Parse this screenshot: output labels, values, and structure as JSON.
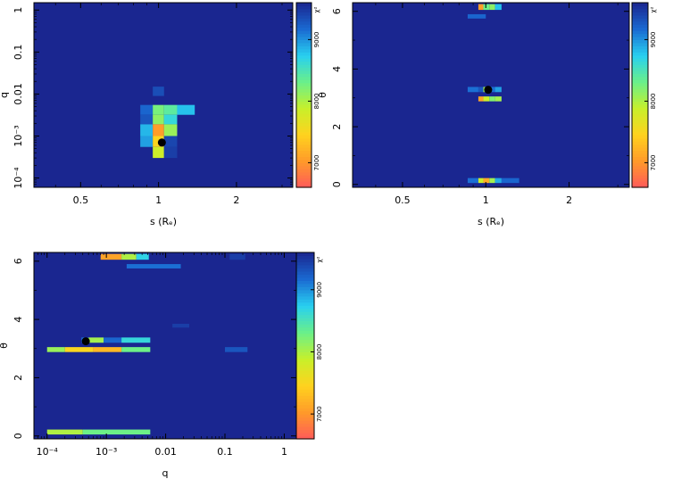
{
  "colors": {
    "background_cell": "#1a2690",
    "scale": [
      "#ff5a5a",
      "#ff9a2a",
      "#ffd21e",
      "#c8f02a",
      "#6af08a",
      "#28d0f0",
      "#1a6ad2",
      "#1a2690"
    ]
  },
  "chart_data": [
    {
      "type": "heatmap",
      "id": "q_vs_s",
      "xlabel": "s (Rₑ)",
      "ylabel": "q",
      "xscale": "log",
      "yscale": "log",
      "xlim": [
        0.33,
        3.3
      ],
      "ylim": [
        6e-05,
        1.5
      ],
      "xticks": [
        {
          "value": 0.5,
          "label": "0.5"
        },
        {
          "value": 1,
          "label": "1"
        },
        {
          "value": 2,
          "label": "2"
        }
      ],
      "yticks": [
        {
          "value": 0.0001,
          "label": "10⁻⁴"
        },
        {
          "value": 0.001,
          "label": "10⁻³"
        },
        {
          "value": 0.01,
          "label": "0.01"
        },
        {
          "value": 0.1,
          "label": "0.1"
        },
        {
          "value": 1,
          "label": "1"
        }
      ],
      "colorbar": {
        "label": "χ²",
        "ticks": [
          {
            "value": 7000,
            "label": "7000"
          },
          {
            "value": 8000,
            "label": "8000"
          },
          {
            "value": 9000,
            "label": "9000"
          }
        ],
        "range": [
          6600,
          9600
        ]
      },
      "cells": [
        {
          "x": [
            0.95,
            1.05
          ],
          "y": [
            0.009,
            0.015
          ],
          "chi2": 9350
        },
        {
          "x": [
            0.85,
            0.95
          ],
          "y": [
            0.0032,
            0.0055
          ],
          "chi2": 9200
        },
        {
          "x": [
            0.95,
            1.05
          ],
          "y": [
            0.0032,
            0.0055
          ],
          "chi2": 8250
        },
        {
          "x": [
            1.05,
            1.18
          ],
          "y": [
            0.0032,
            0.0055
          ],
          "chi2": 8400
        },
        {
          "x": [
            1.18,
            1.38
          ],
          "y": [
            0.0032,
            0.0055
          ],
          "chi2": 8800
        },
        {
          "x": [
            0.85,
            0.95
          ],
          "y": [
            0.0019,
            0.0032
          ],
          "chi2": 9300
        },
        {
          "x": [
            0.95,
            1.05
          ],
          "y": [
            0.0019,
            0.0032
          ],
          "chi2": 8150
        },
        {
          "x": [
            1.05,
            1.18
          ],
          "y": [
            0.0019,
            0.0032
          ],
          "chi2": 8650
        },
        {
          "x": [
            0.85,
            0.95
          ],
          "y": [
            0.001,
            0.0019
          ],
          "chi2": 8850
        },
        {
          "x": [
            0.95,
            1.05
          ],
          "y": [
            0.001,
            0.0019
          ],
          "chi2": 7050
        },
        {
          "x": [
            1.05,
            1.18
          ],
          "y": [
            0.001,
            0.0019
          ],
          "chi2": 8100
        },
        {
          "x": [
            0.85,
            0.95
          ],
          "y": [
            0.00055,
            0.001
          ],
          "chi2": 8950
        },
        {
          "x": [
            0.95,
            1.05
          ],
          "y": [
            0.00055,
            0.001
          ],
          "chi2": 7500
        },
        {
          "x": [
            1.05,
            1.18
          ],
          "y": [
            0.00055,
            0.001
          ],
          "chi2": 9400
        },
        {
          "x": [
            0.95,
            1.05
          ],
          "y": [
            0.0003,
            0.00055
          ],
          "chi2": 7850
        },
        {
          "x": [
            1.05,
            1.18
          ],
          "y": [
            0.0003,
            0.00055
          ],
          "chi2": 9450
        }
      ],
      "best_fit": {
        "x": 1.03,
        "y": 0.0007
      }
    },
    {
      "type": "heatmap",
      "id": "theta_vs_s",
      "xlabel": "s (Rₑ)",
      "ylabel": "θ",
      "xscale": "log",
      "yscale": "linear",
      "xlim": [
        0.33,
        3.3
      ],
      "ylim": [
        -0.1,
        6.3
      ],
      "xticks": [
        {
          "value": 0.5,
          "label": "0.5"
        },
        {
          "value": 1,
          "label": "1"
        },
        {
          "value": 2,
          "label": "2"
        }
      ],
      "yticks": [
        {
          "value": 0,
          "label": "0"
        },
        {
          "value": 2,
          "label": "2"
        },
        {
          "value": 4,
          "label": "4"
        },
        {
          "value": 6,
          "label": "6"
        }
      ],
      "colorbar": {
        "label": "χ²",
        "ticks": [
          {
            "value": 7000,
            "label": "7000"
          },
          {
            "value": 8000,
            "label": "8000"
          },
          {
            "value": 9000,
            "label": "9000"
          }
        ],
        "range": [
          6600,
          9600
        ]
      },
      "cells": [
        {
          "x": [
            0.94,
            0.98
          ],
          "y": [
            6.05,
            6.25
          ],
          "chi2": 7050
        },
        {
          "x": [
            0.98,
            1.03
          ],
          "y": [
            6.05,
            6.25
          ],
          "chi2": 8300
        },
        {
          "x": [
            1.03,
            1.08
          ],
          "y": [
            6.05,
            6.25
          ],
          "chi2": 8150
        },
        {
          "x": [
            1.08,
            1.14
          ],
          "y": [
            6.05,
            6.25
          ],
          "chi2": 8800
        },
        {
          "x": [
            0.86,
            1.0
          ],
          "y": [
            5.75,
            5.9
          ],
          "chi2": 9200
        },
        {
          "x": [
            0.86,
            0.94
          ],
          "y": [
            3.2,
            3.38
          ],
          "chi2": 9150
        },
        {
          "x": [
            0.94,
            0.98
          ],
          "y": [
            3.2,
            3.38
          ],
          "chi2": 9300
        },
        {
          "x": [
            0.98,
            1.03
          ],
          "y": [
            3.2,
            3.38
          ],
          "chi2": 8050
        },
        {
          "x": [
            1.03,
            1.08
          ],
          "y": [
            3.2,
            3.38
          ],
          "chi2": 9150
        },
        {
          "x": [
            1.08,
            1.14
          ],
          "y": [
            3.2,
            3.38
          ],
          "chi2": 8950
        },
        {
          "x": [
            0.94,
            0.98
          ],
          "y": [
            2.88,
            3.05
          ],
          "chi2": 7100
        },
        {
          "x": [
            0.98,
            1.03
          ],
          "y": [
            2.88,
            3.05
          ],
          "chi2": 7850
        },
        {
          "x": [
            1.03,
            1.08
          ],
          "y": [
            2.88,
            3.05
          ],
          "chi2": 8200
        },
        {
          "x": [
            1.08,
            1.14
          ],
          "y": [
            2.88,
            3.05
          ],
          "chi2": 8050
        },
        {
          "x": [
            0.86,
            0.94
          ],
          "y": [
            0.05,
            0.22
          ],
          "chi2": 9150
        },
        {
          "x": [
            0.94,
            0.98
          ],
          "y": [
            0.05,
            0.22
          ],
          "chi2": 7850
        },
        {
          "x": [
            0.98,
            1.03
          ],
          "y": [
            0.05,
            0.22
          ],
          "chi2": 7150
        },
        {
          "x": [
            1.03,
            1.08
          ],
          "y": [
            0.05,
            0.22
          ],
          "chi2": 8050
        },
        {
          "x": [
            1.08,
            1.14
          ],
          "y": [
            0.05,
            0.22
          ],
          "chi2": 8900
        },
        {
          "x": [
            1.14,
            1.32
          ],
          "y": [
            0.05,
            0.22
          ],
          "chi2": 9200
        }
      ],
      "best_fit": {
        "x": 1.02,
        "y": 3.28
      }
    },
    {
      "type": "heatmap",
      "id": "theta_vs_q",
      "xlabel": "q",
      "ylabel": "θ",
      "xscale": "log",
      "yscale": "linear",
      "xlim": [
        6e-05,
        1.6
      ],
      "ylim": [
        -0.1,
        6.3
      ],
      "xticks": [
        {
          "value": 0.0001,
          "label": "10⁻⁴"
        },
        {
          "value": 0.001,
          "label": "10⁻³"
        },
        {
          "value": 0.01,
          "label": "0.01"
        },
        {
          "value": 0.1,
          "label": "0.1"
        },
        {
          "value": 1,
          "label": "1"
        }
      ],
      "yticks": [
        {
          "value": 0,
          "label": "0"
        },
        {
          "value": 2,
          "label": "2"
        },
        {
          "value": 4,
          "label": "4"
        },
        {
          "value": 6,
          "label": "6"
        }
      ],
      "colorbar": {
        "label": "χ²",
        "ticks": [
          {
            "value": 7000,
            "label": "7000"
          },
          {
            "value": 8000,
            "label": "8000"
          },
          {
            "value": 9000,
            "label": "9000"
          }
        ],
        "range": [
          6600,
          9600
        ]
      },
      "cells": [
        {
          "x": [
            0.0008,
            0.0018
          ],
          "y": [
            6.05,
            6.25
          ],
          "chi2": 7100
        },
        {
          "x": [
            0.0018,
            0.0032
          ],
          "y": [
            6.05,
            6.25
          ],
          "chi2": 8000
        },
        {
          "x": [
            0.0032,
            0.0052
          ],
          "y": [
            6.05,
            6.25
          ],
          "chi2": 8700
        },
        {
          "x": [
            0.0022,
            0.018
          ],
          "y": [
            5.75,
            5.9
          ],
          "chi2": 9150
        },
        {
          "x": [
            0.12,
            0.22
          ],
          "y": [
            6.05,
            6.25
          ],
          "chi2": 9450
        },
        {
          "x": [
            0.013,
            0.025
          ],
          "y": [
            3.72,
            3.85
          ],
          "chi2": 9450
        },
        {
          "x": [
            0.00038,
            0.0005
          ],
          "y": [
            3.2,
            3.38
          ],
          "chi2": 9150
        },
        {
          "x": [
            0.0005,
            0.0009
          ],
          "y": [
            3.2,
            3.38
          ],
          "chi2": 8050
        },
        {
          "x": [
            0.0009,
            0.0018
          ],
          "y": [
            3.2,
            3.38
          ],
          "chi2": 9200
        },
        {
          "x": [
            0.0018,
            0.0055
          ],
          "y": [
            3.2,
            3.38
          ],
          "chi2": 8650
        },
        {
          "x": [
            0.0001,
            0.0002
          ],
          "y": [
            2.88,
            3.05
          ],
          "chi2": 8100
        },
        {
          "x": [
            0.0002,
            0.0006
          ],
          "y": [
            2.88,
            3.05
          ],
          "chi2": 7500
        },
        {
          "x": [
            0.0006,
            0.0018
          ],
          "y": [
            2.88,
            3.05
          ],
          "chi2": 7250
        },
        {
          "x": [
            0.0018,
            0.0055
          ],
          "y": [
            2.88,
            3.05
          ],
          "chi2": 8300
        },
        {
          "x": [
            0.1,
            0.24
          ],
          "y": [
            2.88,
            3.05
          ],
          "chi2": 9300
        },
        {
          "x": [
            0.0001,
            0.0004
          ],
          "y": [
            0.05,
            0.22
          ],
          "chi2": 8000
        },
        {
          "x": [
            0.0004,
            0.0055
          ],
          "y": [
            0.05,
            0.22
          ],
          "chi2": 8300
        }
      ],
      "best_fit": {
        "x": 0.00045,
        "y": 3.25
      }
    }
  ]
}
